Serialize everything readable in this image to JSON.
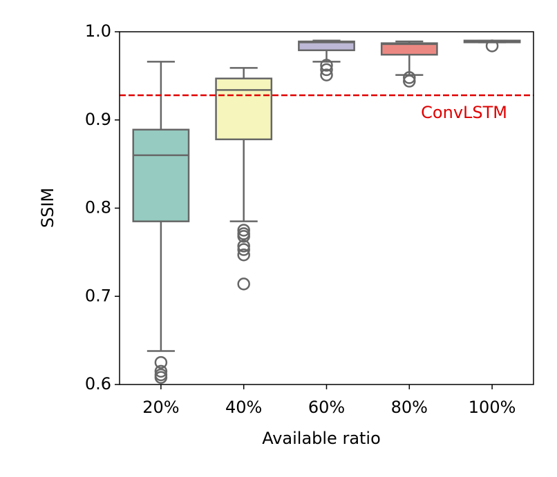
{
  "chart_data": {
    "type": "box",
    "xlabel": "Available ratio",
    "ylabel": "SSIM",
    "categories": [
      "20%",
      "40%",
      "60%",
      "80%",
      "100%"
    ],
    "boxes": [
      {
        "color": "#96cbc1",
        "whislo": 0.638,
        "q1": 0.785,
        "med": 0.86,
        "q3": 0.889,
        "whishi": 0.966,
        "fliers": [
          0.625,
          0.615,
          0.611,
          0.608
        ]
      },
      {
        "color": "#f6f5bb",
        "whislo": 0.785,
        "q1": 0.878,
        "med": 0.934,
        "q3": 0.947,
        "whishi": 0.959,
        "fliers": [
          0.775,
          0.771,
          0.768,
          0.757,
          0.753,
          0.747,
          0.714
        ]
      },
      {
        "color": "#bcb8d5",
        "whislo": 0.966,
        "q1": 0.979,
        "med": 0.988,
        "q3": 0.989,
        "whishi": 0.99,
        "fliers": [
          0.962,
          0.957,
          0.951
        ]
      },
      {
        "color": "#ec8882",
        "whislo": 0.951,
        "q1": 0.974,
        "med": 0.986,
        "q3": 0.987,
        "whishi": 0.989,
        "fliers": [
          0.948,
          0.944
        ]
      },
      {
        "color": "#87aecb",
        "whislo": 0.988,
        "q1": 0.988,
        "med": 0.989,
        "q3": 0.99,
        "whishi": 0.99,
        "fliers": [
          0.984
        ]
      }
    ],
    "reference_line": {
      "value": 0.928,
      "label": "ConvLSTM",
      "color": "#e00000"
    },
    "ylim": [
      0.6,
      1.0
    ],
    "yticks": [
      0.6,
      0.7,
      0.8,
      0.9,
      {
        "value": 1.0,
        "label": "1.0"
      }
    ],
    "grid": false
  }
}
